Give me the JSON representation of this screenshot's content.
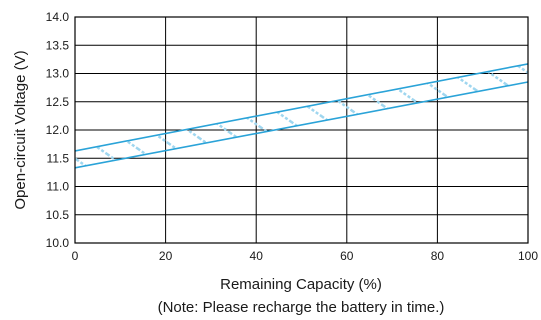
{
  "chart_data": {
    "type": "area",
    "title": "",
    "xlabel": "Remaining Capacity (%)",
    "ylabel": "Open-circuit Voltage (V)",
    "note": "(Note: Please recharge the battery in time.)",
    "xlim": [
      0,
      100
    ],
    "ylim": [
      10.0,
      14.0
    ],
    "x_ticks": [
      "0",
      "20",
      "40",
      "60",
      "80",
      "100"
    ],
    "y_ticks": [
      "10.0",
      "10.5",
      "11.0",
      "11.5",
      "12.0",
      "12.5",
      "13.0",
      "13.5",
      "14.0"
    ],
    "grid": true,
    "band": {
      "upper": {
        "x": [
          0,
          100
        ],
        "y": [
          11.63,
          13.17
        ]
      },
      "lower": {
        "x": [
          0,
          100
        ],
        "y": [
          11.33,
          12.85
        ]
      }
    },
    "colors": {
      "band_line": "#2aa3d8",
      "band_hatch": "#9fd6ef",
      "grid": "#000000"
    }
  }
}
